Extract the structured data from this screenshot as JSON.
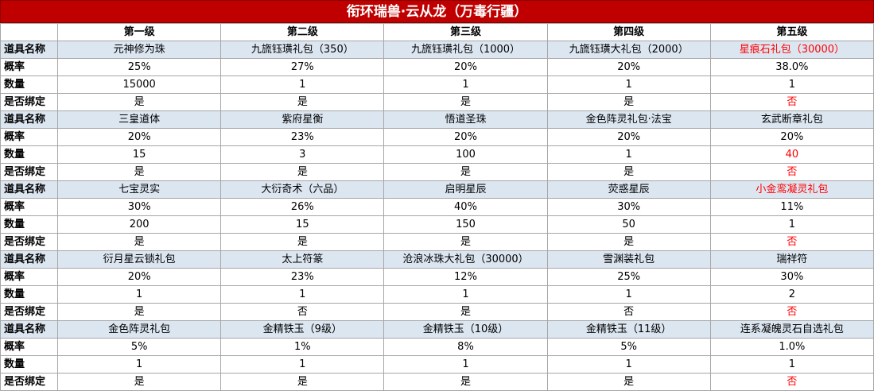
{
  "title": "衔环瑞兽·云从龙（万毒行疆）",
  "header": [
    "",
    "第一级",
    "第二级",
    "第三级",
    "第四级",
    "第五级"
  ],
  "row_labels": {
    "name": "道具名称",
    "rate": "概率",
    "qty": "数量",
    "bound": "是否绑定"
  },
  "colors": {
    "title_bg": "#c00000",
    "name_row_bg": "#dce6f1",
    "highlight": "#ff0000"
  },
  "groups": [
    {
      "name": [
        "元神修为珠",
        "九旒钰璜礼包（350）",
        "九旒钰璜礼包（1000）",
        "九旒钰璜大礼包（2000）",
        "星痕石礼包（30000）"
      ],
      "rate": [
        "25%",
        "27%",
        "20%",
        "20%",
        "38.0%"
      ],
      "qty": [
        "15000",
        "1",
        "1",
        "1",
        "1"
      ],
      "bound": [
        "是",
        "是",
        "是",
        "是",
        "否"
      ]
    },
    {
      "name": [
        "三皇道体",
        "紫府星衡",
        "悟道圣珠",
        "金色阵灵礼包·法宝",
        "玄武断章礼包"
      ],
      "rate": [
        "20%",
        "23%",
        "20%",
        "20%",
        "20%"
      ],
      "qty": [
        "15",
        "3",
        "100",
        "1",
        "40"
      ],
      "bound": [
        "是",
        "是",
        "是",
        "是",
        "否"
      ]
    },
    {
      "name": [
        "七宝灵实",
        "大衍奇术（六品）",
        "启明星辰",
        "荧惑星辰",
        "小金鸾凝灵礼包"
      ],
      "rate": [
        "30%",
        "26%",
        "40%",
        "30%",
        "11%"
      ],
      "qty": [
        "200",
        "15",
        "150",
        "50",
        "1"
      ],
      "bound": [
        "是",
        "是",
        "是",
        "是",
        "否"
      ]
    },
    {
      "name": [
        "衍月星云锁礼包",
        "太上符篆",
        "沧浪冰珠大礼包（30000）",
        "雪渊装礼包",
        "瑞祥符"
      ],
      "rate": [
        "20%",
        "23%",
        "12%",
        "25%",
        "30%"
      ],
      "qty": [
        "1",
        "1",
        "1",
        "1",
        "2"
      ],
      "bound": [
        "是",
        "否",
        "是",
        "否",
        "否"
      ]
    },
    {
      "name": [
        "金色阵灵礼包",
        "金精铁玉（9级）",
        "金精铁玉（10级）",
        "金精铁玉（11级）",
        "连系凝魄灵石自选礼包"
      ],
      "rate": [
        "5%",
        "1%",
        "8%",
        "5%",
        "1.0%"
      ],
      "qty": [
        "1",
        "1",
        "1",
        "1",
        "1"
      ],
      "bound": [
        "是",
        "是",
        "是",
        "是",
        "否"
      ]
    }
  ]
}
